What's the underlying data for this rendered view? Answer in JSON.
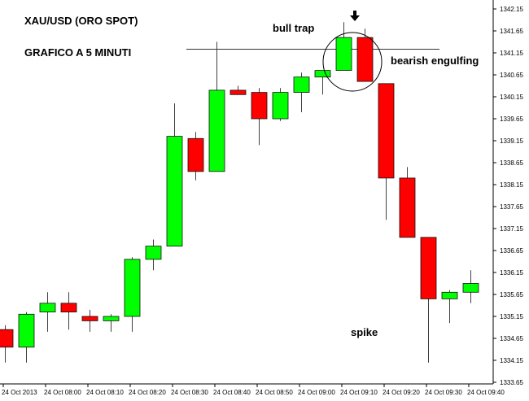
{
  "chart_data": {
    "type": "candlestick",
    "title": "XAU/USD (ORO SPOT)",
    "subtitle": "GRAFICO A 5 MINUTI",
    "ylim": [
      1333.6,
      1342.2
    ],
    "x_ticks": [
      "24 Oct 2013",
      "24 Oct 08:00",
      "24 Oct 08:10",
      "24 Oct 08:20",
      "24 Oct 08:30",
      "24 Oct 08:40",
      "24 Oct 08:50",
      "24 Oct 09:00",
      "24 Oct 09:10",
      "24 Oct 09:20",
      "24 Oct 09:30",
      "24 Oct 09:40"
    ],
    "y_ticks": [
      "1342.15",
      "1341.65",
      "1341.15",
      "1340.65",
      "1340.15",
      "1339.65",
      "1339.15",
      "1338.65",
      "1338.15",
      "1337.65",
      "1337.15",
      "1336.65",
      "1336.15",
      "1335.65",
      "1335.15",
      "1334.65",
      "1334.15",
      "1333.65"
    ],
    "candles": [
      {
        "open": 1334.85,
        "high": 1334.95,
        "low": 1334.1,
        "close": 1334.45,
        "direction": "down"
      },
      {
        "open": 1334.45,
        "high": 1335.25,
        "low": 1334.1,
        "close": 1335.2,
        "direction": "up"
      },
      {
        "open": 1335.25,
        "high": 1335.7,
        "low": 1334.8,
        "close": 1335.45,
        "direction": "up"
      },
      {
        "open": 1335.45,
        "high": 1335.7,
        "low": 1334.85,
        "close": 1335.25,
        "direction": "down"
      },
      {
        "open": 1335.15,
        "high": 1335.3,
        "low": 1334.8,
        "close": 1335.05,
        "direction": "down"
      },
      {
        "open": 1335.05,
        "high": 1335.2,
        "low": 1334.8,
        "close": 1335.15,
        "direction": "up"
      },
      {
        "open": 1335.15,
        "high": 1336.5,
        "low": 1334.8,
        "close": 1336.45,
        "direction": "up"
      },
      {
        "open": 1336.45,
        "high": 1336.9,
        "low": 1336.2,
        "close": 1336.75,
        "direction": "up"
      },
      {
        "open": 1336.75,
        "high": 1340.0,
        "low": 1336.75,
        "close": 1339.25,
        "direction": "up"
      },
      {
        "open": 1339.2,
        "high": 1339.35,
        "low": 1338.25,
        "close": 1338.45,
        "direction": "down"
      },
      {
        "open": 1338.45,
        "high": 1341.4,
        "low": 1338.45,
        "close": 1340.3,
        "direction": "up"
      },
      {
        "open": 1340.3,
        "high": 1340.4,
        "low": 1340.2,
        "close": 1340.2,
        "direction": "down"
      },
      {
        "open": 1340.25,
        "high": 1340.35,
        "low": 1339.05,
        "close": 1339.65,
        "direction": "down"
      },
      {
        "open": 1339.65,
        "high": 1340.35,
        "low": 1339.6,
        "close": 1340.25,
        "direction": "up"
      },
      {
        "open": 1340.25,
        "high": 1340.7,
        "low": 1339.8,
        "close": 1340.6,
        "direction": "up"
      },
      {
        "open": 1340.6,
        "high": 1340.75,
        "low": 1340.2,
        "close": 1340.75,
        "direction": "up"
      },
      {
        "open": 1340.75,
        "high": 1341.85,
        "low": 1340.75,
        "close": 1341.5,
        "direction": "up"
      },
      {
        "open": 1341.5,
        "high": 1341.7,
        "low": 1340.5,
        "close": 1340.5,
        "direction": "down"
      },
      {
        "open": 1340.45,
        "high": 1340.45,
        "low": 1337.35,
        "close": 1338.3,
        "direction": "down"
      },
      {
        "open": 1338.3,
        "high": 1338.55,
        "low": 1336.95,
        "close": 1336.95,
        "direction": "down"
      },
      {
        "open": 1336.95,
        "high": 1336.95,
        "low": 1334.1,
        "close": 1335.55,
        "direction": "down"
      },
      {
        "open": 1335.55,
        "high": 1335.75,
        "low": 1335.0,
        "close": 1335.7,
        "direction": "up"
      },
      {
        "open": 1335.7,
        "high": 1336.2,
        "low": 1335.45,
        "close": 1335.9,
        "direction": "up"
      }
    ],
    "annotations": {
      "bull_trap": "bull trap",
      "bearish_engulfing": "bearish engulfing",
      "spike": "spike"
    },
    "resistance_level": 1341.4,
    "colors": {
      "up": "#00ff00",
      "down": "#ff0000",
      "wick": "#404040",
      "axis": "#000000"
    }
  }
}
